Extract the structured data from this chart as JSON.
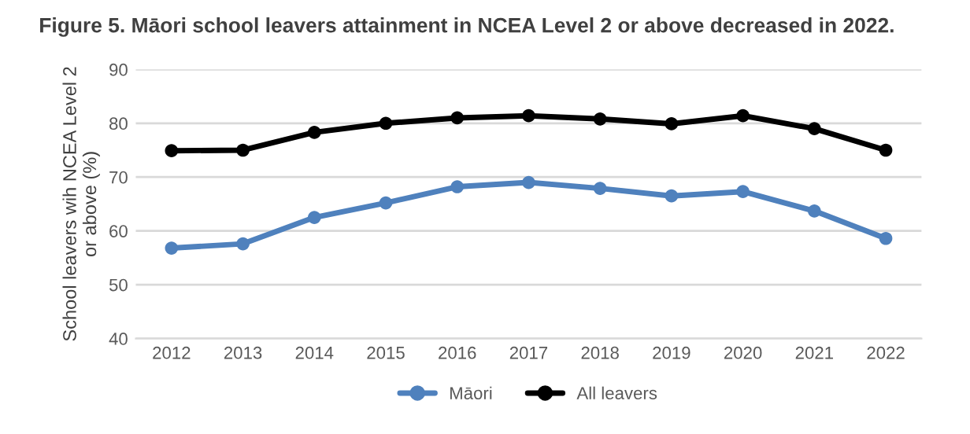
{
  "chart_data": {
    "type": "line",
    "title": "Figure 5. Māori school leavers attainment in NCEA Level 2 or above decreased in 2022.",
    "ylabel": "School leavers wih NCEA Level 2\nor above (%)",
    "categories": [
      "2012",
      "2013",
      "2014",
      "2015",
      "2016",
      "2017",
      "2018",
      "2019",
      "2020",
      "2021",
      "2022"
    ],
    "series": [
      {
        "name": "Māori",
        "color": "#4f81bd",
        "values": [
          56.8,
          57.6,
          62.5,
          65.2,
          68.2,
          69.0,
          67.9,
          66.5,
          67.3,
          63.7,
          58.6
        ]
      },
      {
        "name": "All leavers",
        "color": "#000000",
        "values": [
          74.9,
          75.0,
          78.3,
          80.0,
          81.0,
          81.4,
          80.8,
          79.9,
          81.4,
          79.0,
          75.0
        ]
      }
    ],
    "ylim": [
      40,
      90
    ],
    "yticks": [
      40,
      50,
      60,
      70,
      80,
      90
    ],
    "grid": "y",
    "legend": "bottom",
    "marker": "circle",
    "line_style": "solid"
  }
}
